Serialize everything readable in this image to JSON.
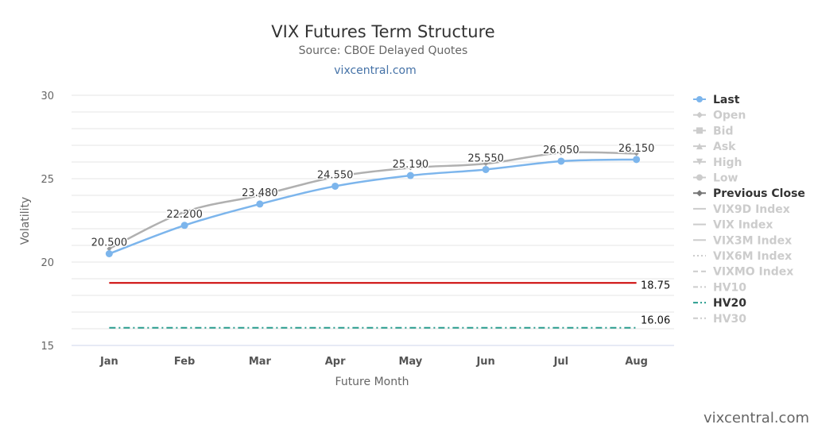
{
  "chart_data": {
    "type": "line",
    "title": "VIX Futures Term Structure",
    "subtitle": "Source: CBOE Delayed Quotes",
    "link": "vixcentral.com",
    "watermark": "vixcentral.com",
    "xlabel": "Future Month",
    "ylabel": "Volatility",
    "categories": [
      "Jan",
      "Feb",
      "Mar",
      "Apr",
      "May",
      "Jun",
      "Jul",
      "Aug"
    ],
    "ylim": [
      15,
      30
    ],
    "yticks": [
      15,
      20,
      25,
      30
    ],
    "grid": true,
    "legend_position": "right",
    "series": [
      {
        "name": "Last",
        "color": "#7cb5ec",
        "visible": true,
        "values": [
          20.5,
          22.2,
          23.48,
          24.55,
          25.19,
          25.55,
          26.05,
          26.15
        ],
        "labels": [
          "20.500",
          "22.200",
          "23.480",
          "24.550",
          "25.190",
          "25.550",
          "26.050",
          "26.150"
        ]
      },
      {
        "name": "Previous Close",
        "color": "#b0b0b0",
        "visible": true,
        "values": [
          20.8,
          23.0,
          24.0,
          25.1,
          25.65,
          25.9,
          26.55,
          26.5
        ]
      }
    ],
    "hlines": [
      {
        "name": "HV20",
        "value": 16.06,
        "label": "16.06",
        "color": "#2a9d8f",
        "style": "dashdot"
      },
      {
        "value": 18.75,
        "label": "18.75",
        "color": "#cc0000",
        "style": "solid"
      }
    ],
    "legend": [
      {
        "name": "Last",
        "active": true,
        "marker": "circle",
        "line": "solid",
        "color": "#7cb5ec"
      },
      {
        "name": "Open",
        "active": false,
        "marker": "diamond",
        "line": "solid"
      },
      {
        "name": "Bid",
        "active": false,
        "marker": "square",
        "line": "solid"
      },
      {
        "name": "Ask",
        "active": false,
        "marker": "triangle",
        "line": "solid"
      },
      {
        "name": "High",
        "active": false,
        "marker": "triangle-down",
        "line": "solid"
      },
      {
        "name": "Low",
        "active": false,
        "marker": "circle",
        "line": "solid"
      },
      {
        "name": "Previous Close",
        "active": true,
        "marker": "diamond",
        "line": "solid",
        "color": "#777777"
      },
      {
        "name": "VIX9D Index",
        "active": false,
        "marker": "none",
        "line": "solid"
      },
      {
        "name": "VIX Index",
        "active": false,
        "marker": "none",
        "line": "solid"
      },
      {
        "name": "VIX3M Index",
        "active": false,
        "marker": "none",
        "line": "solid"
      },
      {
        "name": "VIX6M Index",
        "active": false,
        "marker": "none",
        "line": "dot"
      },
      {
        "name": "VIXMO Index",
        "active": false,
        "marker": "none",
        "line": "dash"
      },
      {
        "name": "HV10",
        "active": false,
        "marker": "none",
        "line": "dashdot"
      },
      {
        "name": "HV20",
        "active": true,
        "marker": "none",
        "line": "dashdot",
        "color": "#2a9d8f"
      },
      {
        "name": "HV30",
        "active": false,
        "marker": "none",
        "line": "dashdot"
      }
    ],
    "colors": {
      "inactive": "#cccccc",
      "active_text": "#333333",
      "grid": "#e6e6e6",
      "axis": "#ccd6eb"
    }
  }
}
